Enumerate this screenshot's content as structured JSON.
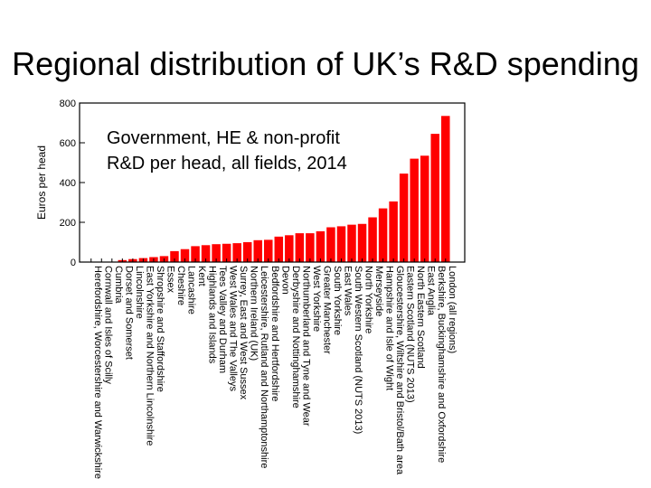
{
  "slide": {
    "title": "Regional distribution of UK’s R&D spending"
  },
  "chart_data": {
    "type": "bar",
    "title": "",
    "annotation": [
      "Government, HE & non-profit",
      "R&D per head, all fields, 2014"
    ],
    "xlabel": "",
    "ylabel": "Euros per head",
    "ylim": [
      0,
      800
    ],
    "yticks": [
      0,
      200,
      400,
      600,
      800
    ],
    "grid": false,
    "bar_color": "#ff0000",
    "categories": [
      "Herefordshire, Worcestershire and Warwickshire",
      "Cornwall and Isles of Scilly",
      "Cumbria",
      "Dorset and Somerset",
      "Lincolnshire",
      "East Yorkshire and Northern Lincolnshire",
      "Shropshire and Staffordshire",
      "Essex",
      "Cheshire",
      "Lancashire",
      "Kent",
      "Highlands and Islands",
      "Tees Valley and Durham",
      "West Wales and The Valleys",
      "Surrey, East and West Sussex",
      "Northern Ireland (UK)",
      "Leicestershire, Rutland and Northamptonshire",
      "Bedfordshire and Hertfordshire",
      "Devon",
      "Derbyshire and Nottinghamshire",
      "Northumberland and Tyne and Wear",
      "West Yorkshire",
      "Greater Manchester",
      "South Yorkshire",
      "East Wales",
      "South Western Scotland (NUTS 2013)",
      "North Yorkshire",
      "Merseyside",
      "Hampshire and Isle of Wight",
      "Gloucestershire, Wiltshire and Bristol/Bath area",
      "Eastern Scotland (NUTS 2013)",
      "North Eastern Scotland",
      "East Anglia",
      "Berkshire, Buckinghamshire and Oxfordshire",
      "London (all regions)"
    ],
    "values": [
      0,
      0,
      0,
      10,
      15,
      20,
      25,
      30,
      55,
      65,
      80,
      85,
      90,
      92,
      95,
      100,
      110,
      112,
      128,
      135,
      145,
      145,
      155,
      175,
      180,
      188,
      192,
      225,
      270,
      305,
      445,
      520,
      535,
      645,
      735
    ]
  }
}
